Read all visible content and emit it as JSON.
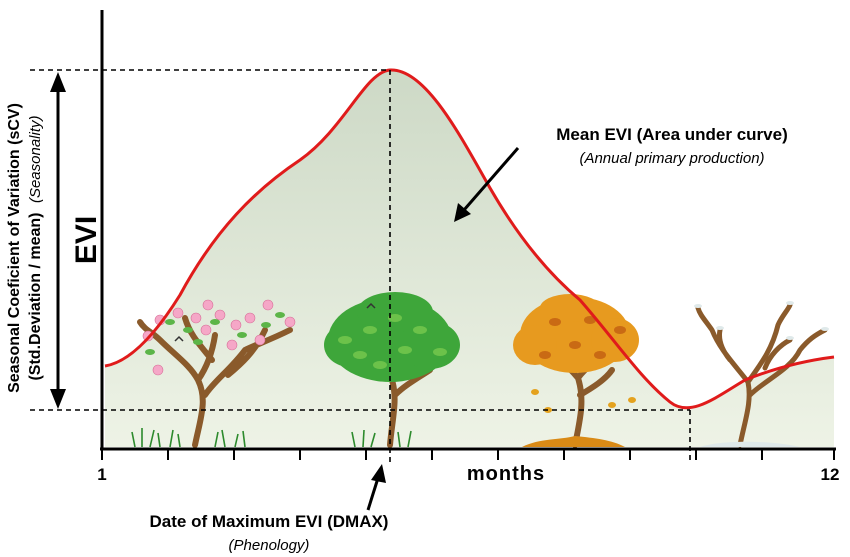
{
  "x_axis": {
    "start_label": "1",
    "end_label": "12",
    "title": "months"
  },
  "y_axis": {
    "title": "EVI"
  },
  "annotations": {
    "mean_title": "Mean EVI (Area under curve)",
    "mean_subtitle": "(Annual primary production)",
    "dmax_title": "Date of Maximum EVI (DMAX)",
    "dmax_subtitle": "(Phenology)",
    "scv_line1_bold": "Seasonal Coeficient of Variation (sCV)",
    "scv_line2_bold": "(Std.Deviation / mean)",
    "scv_line2_italic": "(Seasonality)"
  },
  "chart_data": {
    "type": "area",
    "x": [
      1,
      1.8,
      2.5,
      3.5,
      4.5,
      5,
      6,
      7,
      8,
      9,
      10,
      11,
      12
    ],
    "y": [
      0.15,
      0.3,
      0.58,
      0.72,
      0.93,
      0.99,
      0.72,
      0.45,
      0.28,
      0.08,
      0.02,
      0.1,
      0.15
    ],
    "xlim": [
      1,
      12
    ],
    "ylim": [
      0,
      1
    ],
    "seasons": [
      "spring",
      "summer",
      "autumn",
      "winter"
    ],
    "colors": {
      "curve": "#e01b1b",
      "area_fill": "#d9e4d0",
      "axis": "#000000",
      "spring_blossom": "#f5a7c7",
      "summer_leaf": "#3ea63a",
      "autumn_leaf": "#e79a1f",
      "trunk": "#8a5a2b"
    }
  }
}
